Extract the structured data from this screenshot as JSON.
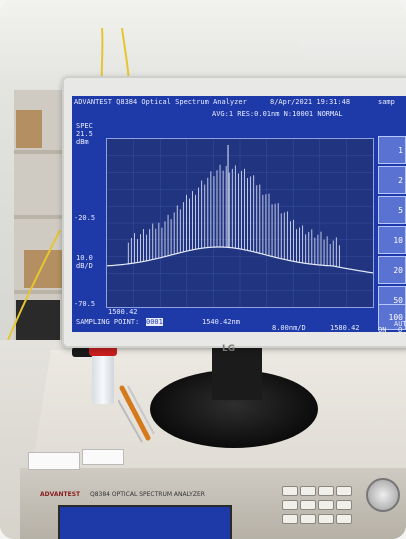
{
  "osa_screen": {
    "header_left": "ADVANTEST Q8384 Optical Spectrum Analyzer",
    "header_date": "8/Apr/2021 19:31:48",
    "header_right": "samp",
    "status_line": "AVG:1  RES:0.01nm N:10001  NORMAL",
    "y_label_top": "SPEC",
    "y_top_value": "21.5",
    "y_top_unit": "dBm",
    "y_mid_value": "-20.5",
    "y_ref_value": "10.0",
    "y_ref_unit": "dB/D",
    "y_bottom_value": "-70.5",
    "x_left": "1500.42",
    "x_center": "1540.42nm",
    "x_span": "8.00nm/D",
    "x_right": "1580.42",
    "sampling_label": "SAMPLING POINT:",
    "sampling_value": "0001",
    "side_buttons": [
      "1",
      "2",
      "5",
      "10",
      "20",
      "50",
      "100"
    ],
    "side_extra_1": "AUT",
    "side_extra_2": "ON",
    "side_extra_3": "O"
  },
  "monitor_brand": "LG",
  "instrument": {
    "brand": "ADVANTEST",
    "model": "Q8384  OPTICAL SPECTRUM ANALYZER"
  },
  "colors": {
    "screen_bg": "#1e3aa8",
    "trace": "#e8ecff",
    "cup_lid": "#c91f1f"
  }
}
